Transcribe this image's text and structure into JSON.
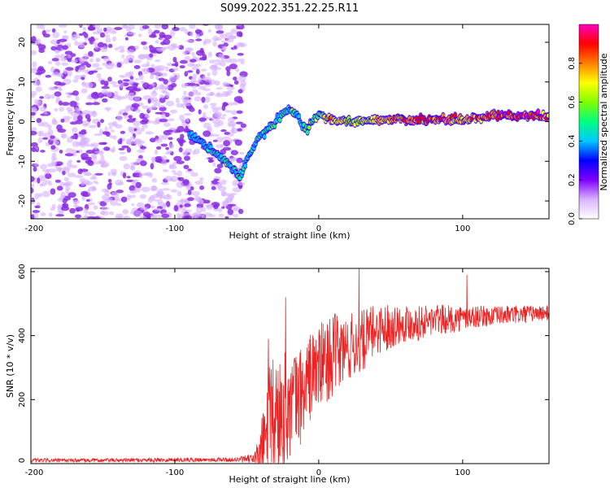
{
  "title": "S099.2022.351.22.25.R11",
  "chart_data": [
    {
      "type": "heatmap",
      "xlabel": "Height of straight line (km)",
      "ylabel": "Frequency (Hz)",
      "xlim": [
        -200,
        160
      ],
      "ylim": [
        -24.5,
        24.5
      ],
      "xticks": [
        -200,
        -100,
        0,
        100
      ],
      "yticks": [
        -20,
        -10,
        0,
        10,
        20
      ],
      "colorbar": {
        "label": "Normalized spectral amplitude",
        "range": [
          0,
          1
        ],
        "ticks": [
          "0.0",
          "0.2",
          "0.4",
          "0.6",
          "0.8"
        ],
        "tick_values": [
          0.0,
          0.2,
          0.4,
          0.6,
          0.8
        ],
        "colors": [
          "#ffffff",
          "#d9b3ff",
          "#7f00ff",
          "#0000ff",
          "#00c8ff",
          "#00ff80",
          "#80ff00",
          "#ffff00",
          "#ff8000",
          "#ff0000",
          "#ff00c0"
        ]
      },
      "noise_region_x": [
        -200,
        -58
      ],
      "ridge": {
        "x": [
          -90,
          -80,
          -72,
          -65,
          -60,
          -55,
          -50,
          -45,
          -40,
          -35,
          -30,
          -25,
          -20,
          -15,
          -12,
          -8,
          -5,
          0,
          10,
          20,
          30,
          40,
          50,
          60,
          70,
          80,
          90,
          100,
          110,
          120,
          130,
          140,
          150,
          160
        ],
        "y": [
          -3,
          -5.5,
          -8,
          -10,
          -12,
          -14,
          -10,
          -6,
          -3,
          -2,
          0,
          2,
          3,
          2,
          -1,
          -2,
          0,
          1.5,
          0.5,
          0,
          0,
          0.5,
          0.5,
          0.5,
          0.5,
          0.5,
          0.5,
          0.5,
          1,
          1.5,
          1.5,
          1.5,
          1.5,
          1.5
        ],
        "amplitude": [
          0.25,
          0.35,
          0.4,
          0.45,
          0.45,
          0.5,
          0.45,
          0.4,
          0.4,
          0.45,
          0.5,
          0.55,
          0.5,
          0.45,
          0.45,
          0.5,
          0.55,
          0.6,
          0.7,
          0.7,
          0.65,
          0.7,
          0.75,
          0.8,
          0.85,
          0.85,
          0.8,
          0.75,
          0.8,
          0.85,
          0.9,
          0.9,
          0.9,
          0.85
        ]
      }
    },
    {
      "type": "line",
      "xlabel": "Height of straight line (km)",
      "ylabel": "SNR (10 * v/v)",
      "xlim": [
        -200,
        160
      ],
      "ylim": [
        0,
        610
      ],
      "xticks": [
        -200,
        -100,
        0,
        100
      ],
      "yticks": [
        0,
        200,
        400,
        600
      ],
      "color": "#ee2222",
      "envelope": {
        "x": [
          -200,
          -150,
          -100,
          -60,
          -45,
          -40,
          -35,
          -30,
          -25,
          -20,
          -15,
          -10,
          -5,
          0,
          5,
          10,
          20,
          30,
          40,
          50,
          60,
          70,
          80,
          90,
          100,
          110,
          120,
          130,
          140,
          150,
          160
        ],
        "mean": [
          10,
          10,
          12,
          12,
          15,
          30,
          120,
          150,
          170,
          180,
          200,
          230,
          280,
          300,
          320,
          340,
          360,
          380,
          420,
          430,
          440,
          440,
          450,
          450,
          455,
          460,
          460,
          465,
          465,
          470,
          470
        ],
        "spread": [
          6,
          6,
          7,
          7,
          15,
          100,
          180,
          200,
          180,
          170,
          160,
          150,
          140,
          140,
          130,
          130,
          110,
          100,
          80,
          70,
          60,
          55,
          50,
          45,
          40,
          35,
          30,
          30,
          30,
          25,
          25
        ]
      },
      "peaks": [
        {
          "x": -35,
          "y": 390
        },
        {
          "x": -23,
          "y": 520
        },
        {
          "x": 28,
          "y": 610
        },
        {
          "x": 103,
          "y": 590
        }
      ]
    }
  ]
}
